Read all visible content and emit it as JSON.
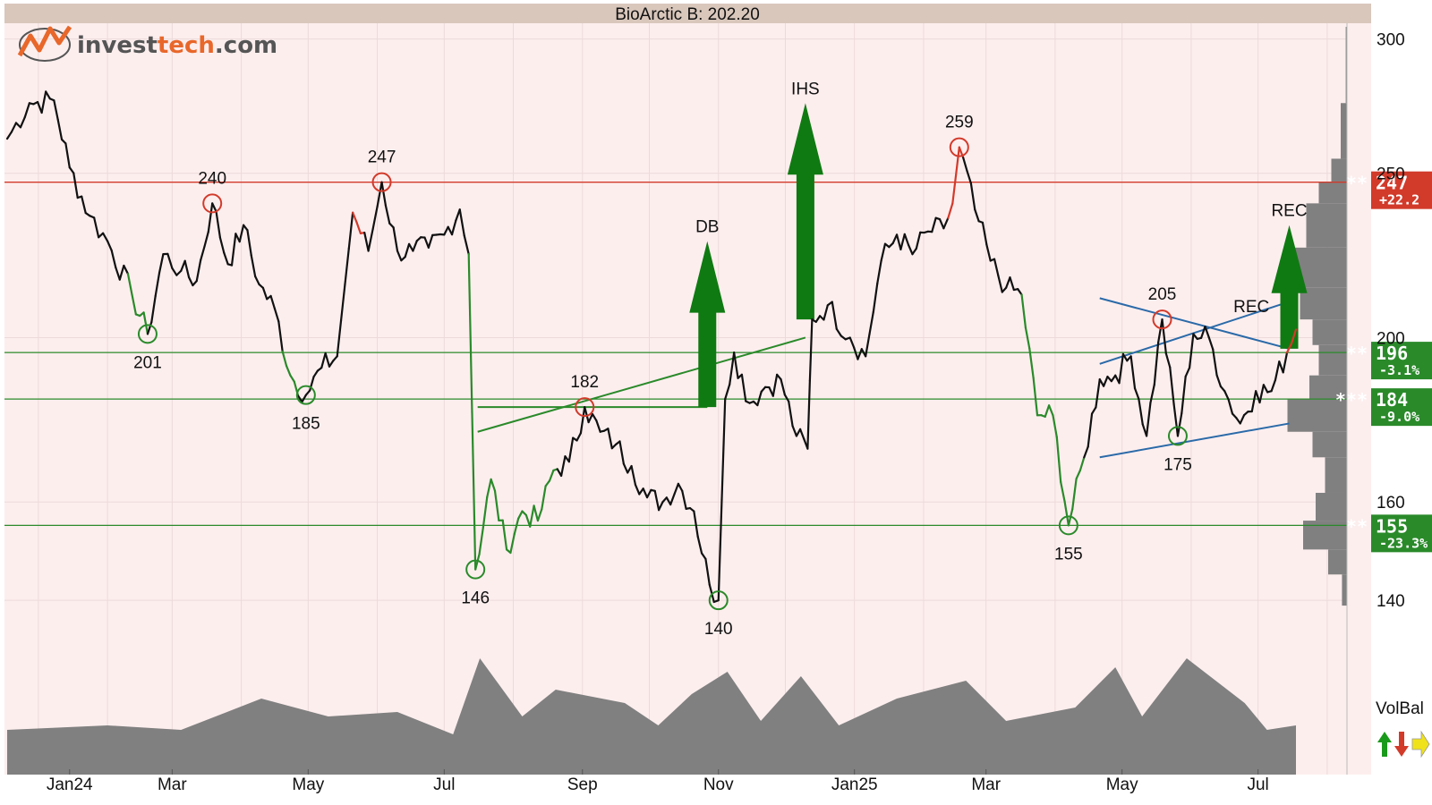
{
  "header": {
    "title": "BioArctic B: 202.20"
  },
  "logo": {
    "prefix": "invest",
    "accent": "tech",
    "suffix": ".com"
  },
  "colors": {
    "plot_bg": "#fdeeee",
    "title_bar": "#d9c7bc",
    "price_line": "#111111",
    "up_segment": "#2a8a2a",
    "down_segment": "#d23a2a",
    "support": "#2a8a2a",
    "resistance": "#d23a2a",
    "trendline_blue": "#2a6aa8",
    "signal_arrow": "#0f7a12",
    "volume": "#808080",
    "logo_orange": "#e8672a",
    "logo_grey": "#555555"
  },
  "volume_legend": {
    "label": "VolBal",
    "icons": [
      "up-arrow-green-icon",
      "down-arrow-red-icon",
      "right-arrow-yellow-icon"
    ]
  },
  "chart_data": {
    "type": "line",
    "scale": "log",
    "ylim": [
      137,
      305
    ],
    "y_ticks": [
      140,
      160,
      200,
      250,
      300
    ],
    "x_ticks": [
      "Jan24",
      "Mar",
      "May",
      "Jul",
      "Sep",
      "Nov",
      "Jan25",
      "Mar",
      "May",
      "Jul"
    ],
    "grid": true,
    "series": [
      {
        "points": [
          [
            "2023-12-18",
            262
          ],
          [
            "2023-12-28",
            275
          ],
          [
            "2024-01-08",
            276
          ],
          [
            "2024-01-15",
            252
          ],
          [
            "2024-01-24",
            236
          ],
          [
            "2024-02-01",
            228
          ],
          [
            "2024-02-12",
            212
          ],
          [
            "2024-02-19",
            201
          ],
          [
            "2024-02-26",
            224
          ],
          [
            "2024-03-05",
            219
          ],
          [
            "2024-03-12",
            216
          ],
          [
            "2024-03-19",
            240
          ],
          [
            "2024-03-26",
            221
          ],
          [
            "2024-04-02",
            233
          ],
          [
            "2024-04-09",
            215
          ],
          [
            "2024-04-16",
            208
          ],
          [
            "2024-04-23",
            190
          ],
          [
            "2024-04-30",
            185
          ],
          [
            "2024-05-07",
            192
          ],
          [
            "2024-05-14",
            195
          ],
          [
            "2024-05-21",
            237
          ],
          [
            "2024-05-28",
            225
          ],
          [
            "2024-06-03",
            247
          ],
          [
            "2024-06-10",
            225
          ],
          [
            "2024-06-17",
            225
          ],
          [
            "2024-06-24",
            226
          ],
          [
            "2024-07-01",
            230
          ],
          [
            "2024-07-08",
            238
          ],
          [
            "2024-07-12",
            224
          ],
          [
            "2024-07-15",
            146
          ],
          [
            "2024-07-22",
            165
          ],
          [
            "2024-07-29",
            150
          ],
          [
            "2024-08-05",
            158
          ],
          [
            "2024-08-12",
            156
          ],
          [
            "2024-08-19",
            167
          ],
          [
            "2024-08-26",
            169
          ],
          [
            "2024-09-02",
            182
          ],
          [
            "2024-09-09",
            176
          ],
          [
            "2024-09-16",
            173
          ],
          [
            "2024-09-23",
            168
          ],
          [
            "2024-09-30",
            161
          ],
          [
            "2024-10-07",
            160
          ],
          [
            "2024-10-14",
            164
          ],
          [
            "2024-10-21",
            158
          ],
          [
            "2024-10-28",
            143
          ],
          [
            "2024-11-01",
            140
          ],
          [
            "2024-11-04",
            184
          ],
          [
            "2024-11-08",
            196
          ],
          [
            "2024-11-15",
            183
          ],
          [
            "2024-11-22",
            187
          ],
          [
            "2024-11-29",
            189
          ],
          [
            "2024-12-06",
            175
          ],
          [
            "2024-12-11",
            172
          ],
          [
            "2024-12-13",
            205
          ],
          [
            "2024-12-20",
            209
          ],
          [
            "2024-12-30",
            200
          ],
          [
            "2025-01-06",
            195
          ],
          [
            "2025-01-13",
            222
          ],
          [
            "2025-01-20",
            230
          ],
          [
            "2025-01-27",
            224
          ],
          [
            "2025-02-03",
            231
          ],
          [
            "2025-02-10",
            232
          ],
          [
            "2025-02-14",
            240
          ],
          [
            "2025-02-17",
            259
          ],
          [
            "2025-02-24",
            238
          ],
          [
            "2025-03-03",
            222
          ],
          [
            "2025-03-10",
            214
          ],
          [
            "2025-03-17",
            212
          ],
          [
            "2025-03-24",
            180
          ],
          [
            "2025-03-31",
            180
          ],
          [
            "2025-04-07",
            155
          ],
          [
            "2025-04-14",
            170
          ],
          [
            "2025-04-21",
            189
          ],
          [
            "2025-04-28",
            190
          ],
          [
            "2025-05-05",
            195
          ],
          [
            "2025-05-12",
            175
          ],
          [
            "2025-05-19",
            205
          ],
          [
            "2025-05-26",
            175
          ],
          [
            "2025-06-02",
            201
          ],
          [
            "2025-06-09",
            200
          ],
          [
            "2025-06-16",
            186
          ],
          [
            "2025-06-23",
            178
          ],
          [
            "2025-06-30",
            186
          ],
          [
            "2025-07-07",
            186
          ],
          [
            "2025-07-14",
            196
          ],
          [
            "2025-07-18",
            202.2
          ]
        ]
      }
    ],
    "turning_points": [
      {
        "date": "2024-02-19",
        "value": 201,
        "label": "201",
        "kind": "low"
      },
      {
        "date": "2024-03-19",
        "value": 240,
        "label": "240",
        "kind": "high"
      },
      {
        "date": "2024-04-30",
        "value": 185,
        "label": "185",
        "kind": "low"
      },
      {
        "date": "2024-06-03",
        "value": 247,
        "label": "247",
        "kind": "high"
      },
      {
        "date": "2024-07-15",
        "value": 146,
        "label": "146",
        "kind": "low"
      },
      {
        "date": "2024-09-02",
        "value": 182,
        "label": "182",
        "kind": "high"
      },
      {
        "date": "2024-11-01",
        "value": 140,
        "label": "140",
        "kind": "low"
      },
      {
        "date": "2025-02-17",
        "value": 259,
        "label": "259",
        "kind": "high"
      },
      {
        "date": "2025-04-07",
        "value": 155,
        "label": "155",
        "kind": "low"
      },
      {
        "date": "2025-05-19",
        "value": 205,
        "label": "205",
        "kind": "high"
      },
      {
        "date": "2025-05-26",
        "value": 175,
        "label": "175",
        "kind": "low"
      }
    ],
    "levels": [
      {
        "value": 247,
        "kind": "resistance",
        "stars": "**",
        "label": "247",
        "pct": "+22.2"
      },
      {
        "value": 196,
        "kind": "support",
        "stars": "**",
        "label": "196",
        "pct": "-3.1%"
      },
      {
        "value": 184,
        "kind": "support",
        "stars": "***",
        "label": "184",
        "pct": "-9.0%"
      },
      {
        "value": 155,
        "kind": "support",
        "stars": "**",
        "label": "155",
        "pct": "-23.3%"
      }
    ],
    "patterns": [
      {
        "label": "IHS",
        "arrow_base_date": "2024-12-10",
        "arrow_base_value": 205,
        "arrow_top_value": 275
      },
      {
        "label": "DB",
        "arrow_base_date": "2024-10-27",
        "arrow_base_value": 182,
        "arrow_top_value": 228
      },
      {
        "label": "REC",
        "arrow_base_date": "2025-07-15",
        "arrow_base_value": 197,
        "arrow_top_value": 233
      },
      {
        "label": "REC",
        "text_only": true,
        "text_date": "2025-06-28",
        "text_value": 207
      }
    ],
    "trendlines": [
      {
        "kind": "green",
        "from": [
          "2024-07-16",
          176
        ],
        "to": [
          "2024-12-10",
          200
        ]
      },
      {
        "kind": "green",
        "from": [
          "2024-07-16",
          182
        ],
        "to": [
          "2024-10-27",
          182
        ]
      },
      {
        "kind": "blue",
        "from": [
          "2025-04-21",
          211
        ],
        "to": [
          "2025-07-15",
          197
        ]
      },
      {
        "kind": "blue",
        "from": [
          "2025-04-21",
          193
        ],
        "to": [
          "2025-07-15",
          210
        ]
      },
      {
        "kind": "blue",
        "from": [
          "2025-04-21",
          170
        ],
        "to": [
          "2025-07-15",
          178
        ]
      }
    ],
    "volume_profile": [
      {
        "from": 305,
        "to": 275,
        "weight": 0.02
      },
      {
        "from": 275,
        "to": 255,
        "weight": 0.1
      },
      {
        "from": 255,
        "to": 247,
        "weight": 0.25
      },
      {
        "from": 247,
        "to": 240,
        "weight": 0.45
      },
      {
        "from": 240,
        "to": 226,
        "weight": 0.65
      },
      {
        "from": 226,
        "to": 214,
        "weight": 1.0
      },
      {
        "from": 214,
        "to": 205,
        "weight": 0.75
      },
      {
        "from": 205,
        "to": 198,
        "weight": 0.55
      },
      {
        "from": 198,
        "to": 190,
        "weight": 0.45
      },
      {
        "from": 190,
        "to": 184,
        "weight": 0.6
      },
      {
        "from": 184,
        "to": 176,
        "weight": 0.95
      },
      {
        "from": 176,
        "to": 170,
        "weight": 0.55
      },
      {
        "from": 170,
        "to": 162,
        "weight": 0.35
      },
      {
        "from": 162,
        "to": 156,
        "weight": 0.5
      },
      {
        "from": 156,
        "to": 150,
        "weight": 0.7
      },
      {
        "from": 150,
        "to": 145,
        "weight": 0.3
      },
      {
        "from": 145,
        "to": 139,
        "weight": 0.08
      }
    ],
    "volume_balance": [
      [
        "2023-12-18",
        0.2
      ],
      [
        "2024-01-05",
        0.22
      ],
      [
        "2024-02-01",
        0.25
      ],
      [
        "2024-03-05",
        0.2
      ],
      [
        "2024-04-10",
        0.55
      ],
      [
        "2024-05-10",
        0.35
      ],
      [
        "2024-06-10",
        0.4
      ],
      [
        "2024-07-05",
        0.15
      ],
      [
        "2024-07-17",
        1.0
      ],
      [
        "2024-08-05",
        0.35
      ],
      [
        "2024-08-20",
        0.65
      ],
      [
        "2024-09-20",
        0.5
      ],
      [
        "2024-10-05",
        0.25
      ],
      [
        "2024-10-20",
        0.6
      ],
      [
        "2024-11-05",
        0.85
      ],
      [
        "2024-11-20",
        0.3
      ],
      [
        "2024-12-08",
        0.8
      ],
      [
        "2024-12-25",
        0.25
      ],
      [
        "2025-01-20",
        0.55
      ],
      [
        "2025-02-20",
        0.75
      ],
      [
        "2025-03-10",
        0.3
      ],
      [
        "2025-04-10",
        0.45
      ],
      [
        "2025-04-28",
        0.9
      ],
      [
        "2025-05-10",
        0.35
      ],
      [
        "2025-05-30",
        1.0
      ],
      [
        "2025-06-25",
        0.5
      ],
      [
        "2025-07-05",
        0.2
      ],
      [
        "2025-07-18",
        0.25
      ]
    ]
  }
}
